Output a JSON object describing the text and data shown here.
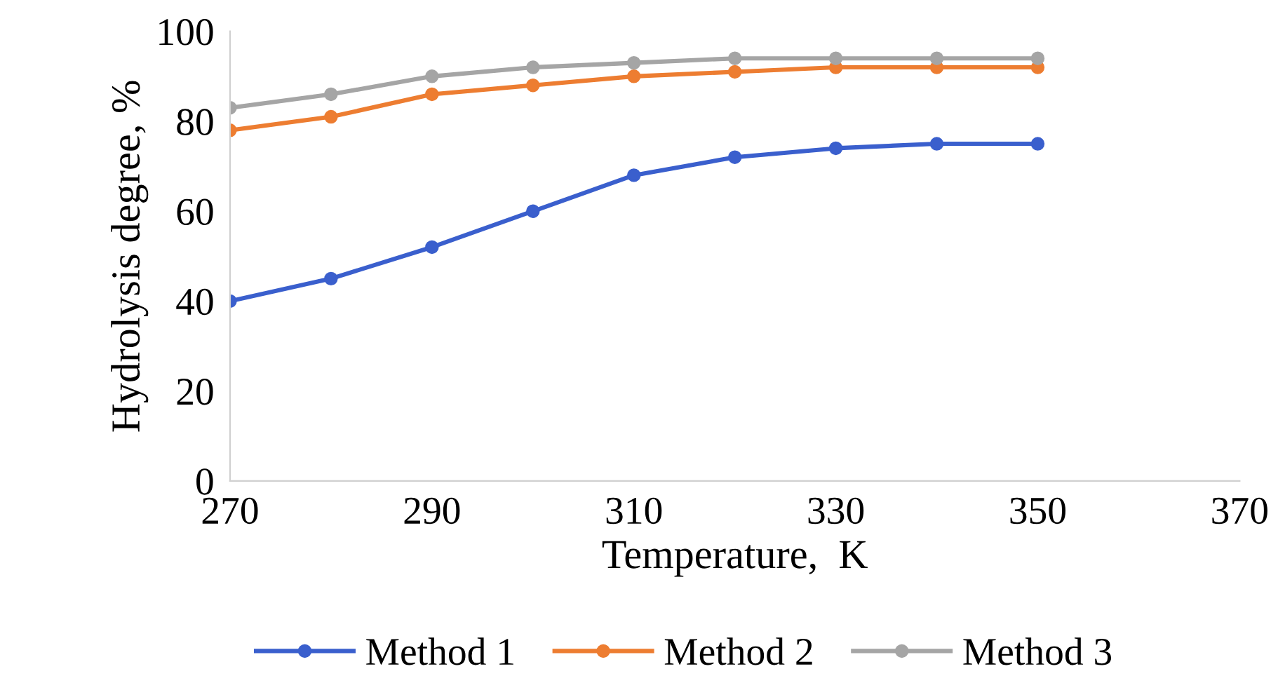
{
  "chart_data": {
    "type": "line",
    "xlabel": "Temperature,  K",
    "ylabel": "Hydrolysis degree, %",
    "x": [
      270,
      280,
      290,
      300,
      310,
      320,
      330,
      340,
      350
    ],
    "series": [
      {
        "name": "Method 1",
        "color": "#3a5fcd",
        "values": [
          40,
          45,
          52,
          60,
          68,
          72,
          74,
          75,
          75
        ]
      },
      {
        "name": "Method 2",
        "color": "#ed7d31",
        "values": [
          78,
          81,
          86,
          88,
          90,
          91,
          92,
          92,
          92
        ]
      },
      {
        "name": "Method 3",
        "color": "#a5a5a5",
        "values": [
          83,
          86,
          90,
          92,
          93,
          94,
          94,
          94,
          94
        ]
      }
    ],
    "xlim": [
      270,
      370
    ],
    "xticks": [
      270,
      290,
      310,
      330,
      350,
      370
    ],
    "ylim": [
      0,
      100
    ],
    "yticks": [
      0,
      20,
      40,
      60,
      80,
      100
    ],
    "grid": false,
    "legend": "bottom",
    "marker": "circle",
    "line_style": "solid"
  }
}
